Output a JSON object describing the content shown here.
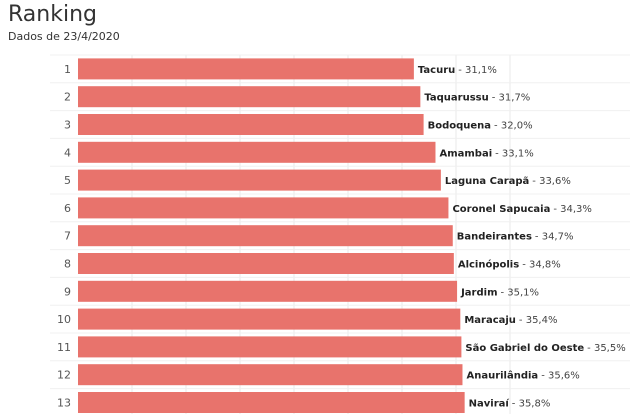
{
  "header": {
    "title": "Ranking",
    "subtitle": "Dados de 23/4/2020"
  },
  "colors": {
    "bar": "#e8736c",
    "grid": "#e8e8e8"
  },
  "chart_data": {
    "type": "bar",
    "orientation": "horizontal",
    "title": "Ranking",
    "subtitle": "Dados de 23/4/2020",
    "xlabel": "",
    "ylabel": "",
    "xlim": [
      0,
      40
    ],
    "grid": true,
    "ranks": [
      "1",
      "2",
      "3",
      "4",
      "5",
      "6",
      "7",
      "8",
      "9",
      "10",
      "11",
      "12",
      "13"
    ],
    "categories": [
      "Tacuru",
      "Taquarussu",
      "Bodoquena",
      "Amambai",
      "Laguna Carapã",
      "Coronel Sapucaia",
      "Bandeirantes",
      "Alcinópolis",
      "Jardim",
      "Maracaju",
      "São Gabriel do Oeste",
      "Anaurilândia",
      "Naviraí"
    ],
    "values": [
      31.1,
      31.7,
      32.0,
      33.1,
      33.6,
      34.3,
      34.7,
      34.8,
      35.1,
      35.4,
      35.5,
      35.6,
      35.8
    ],
    "value_labels": [
      "- 31,1%",
      "- 31,7%",
      "- 32,0%",
      "- 33,1%",
      "- 33,6%",
      "- 34,3%",
      "- 34,7%",
      "- 34,8%",
      "- 35,1%",
      "- 35,4%",
      "- 35,5%",
      "- 35,6%",
      "- 35,8%"
    ]
  }
}
